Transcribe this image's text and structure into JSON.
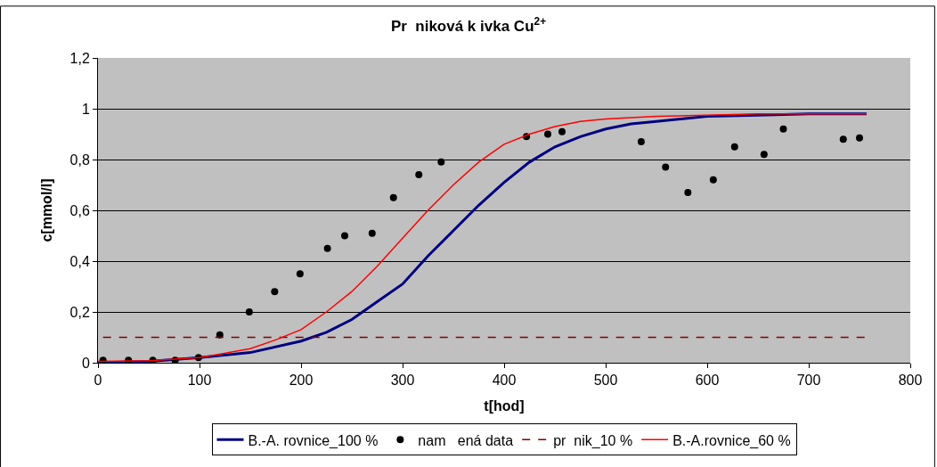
{
  "chart_data": {
    "type": "line",
    "title": "Pr  niková k ivka Cu$^{2+}$",
    "xlabel": "t[hod]",
    "ylabel": "c[mmol/l]",
    "xlim": [
      0,
      800
    ],
    "xticks": [
      0,
      100,
      200,
      300,
      400,
      500,
      600,
      700,
      800
    ],
    "ylim": [
      0,
      1.2
    ],
    "yticks": [
      0,
      {
        "value": 0.2,
        "label": "0,2"
      },
      {
        "value": 0.4,
        "label": "0,4"
      },
      {
        "value": 0.6,
        "label": "0,6"
      },
      {
        "value": 0.8,
        "label": "0,8"
      },
      1,
      {
        "value": 1.2,
        "label": "1,2"
      }
    ],
    "grid": "y",
    "legend": "bottom",
    "series": [
      {
        "name": "B.-A. rovnice_100 %",
        "color": "#000080",
        "marker": "none",
        "line_style": "solid",
        "x": [
          0,
          50,
          100,
          150,
          200,
          225,
          250,
          275,
          300,
          325,
          350,
          375,
          400,
          425,
          450,
          475,
          500,
          525,
          550,
          600,
          650,
          700,
          757
        ],
        "values": [
          0.0,
          0.005,
          0.02,
          0.04,
          0.085,
          0.12,
          0.17,
          0.24,
          0.31,
          0.42,
          0.52,
          0.62,
          0.71,
          0.79,
          0.85,
          0.89,
          0.92,
          0.94,
          0.95,
          0.97,
          0.975,
          0.98,
          0.98
        ]
      },
      {
        "name": "nam   ená data",
        "type": "scatter",
        "color": "#000000",
        "marker": "circle",
        "x": [
          5,
          30,
          54,
          76,
          99,
          120,
          149,
          174,
          199,
          226,
          243,
          270,
          291,
          316,
          338,
          422,
          443,
          457,
          535,
          559,
          581,
          606,
          627,
          656,
          675,
          734,
          750
        ],
        "values": [
          0.01,
          0.01,
          0.01,
          0.01,
          0.02,
          0.11,
          0.2,
          0.28,
          0.35,
          0.45,
          0.5,
          0.51,
          0.65,
          0.74,
          0.79,
          0.89,
          0.9,
          0.91,
          0.87,
          0.77,
          0.67,
          0.72,
          0.85,
          0.82,
          0.92,
          0.88,
          0.885
        ]
      },
      {
        "name": "pr  nik_10 %",
        "color": "#800000",
        "marker": "none",
        "line_style": "dashed",
        "x": [
          5,
          755
        ],
        "values": [
          0.1,
          0.1
        ]
      },
      {
        "name": "B.-A.rovnice_60 %",
        "color": "#ff0000",
        "marker": "none",
        "line_style": "solid",
        "x": [
          0,
          50,
          100,
          150,
          175,
          200,
          225,
          250,
          275,
          300,
          325,
          350,
          375,
          400,
          425,
          450,
          475,
          500,
          550,
          600,
          650,
          757
        ],
        "values": [
          0.005,
          0.008,
          0.02,
          0.055,
          0.09,
          0.13,
          0.2,
          0.28,
          0.38,
          0.49,
          0.6,
          0.7,
          0.79,
          0.86,
          0.9,
          0.93,
          0.95,
          0.96,
          0.97,
          0.975,
          0.98,
          0.98
        ]
      }
    ]
  }
}
